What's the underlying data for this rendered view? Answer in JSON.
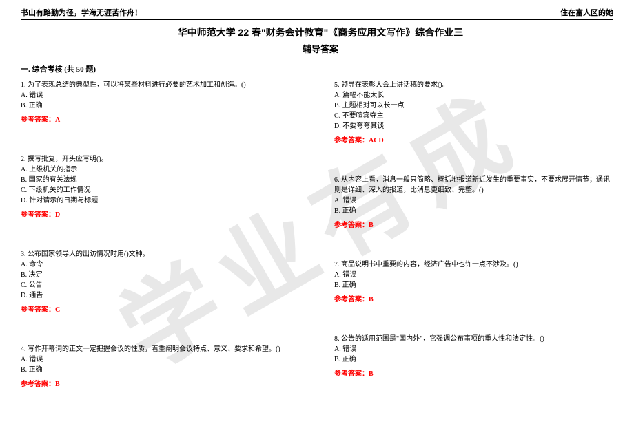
{
  "header": {
    "left": "书山有路勤为径，学海无涯苦作舟！",
    "right": "住在富人区的她"
  },
  "title": "华中师范大学 22 春\"财务会计教育\"《商务应用文写作》综合作业三",
  "subtitle": "辅导答案",
  "section_header": "一. 综合考核 (共 50 题)",
  "watermark": "学业有成",
  "answer_label": "参考答案：",
  "colors": {
    "answer": "#ff0000",
    "text": "#000000",
    "watermark": "#e8e8e8"
  },
  "left_questions": [
    {
      "text": "1. 为了表现总结的典型性，可以将某些材料进行必要的艺术加工和创造。()",
      "options": [
        "A. 错误",
        "B. 正确"
      ],
      "answer": "A"
    },
    {
      "text": "2. 撰写批复，开头应写明()。",
      "options": [
        "A. 上级机关的指示",
        "B. 国家的有关法规",
        "C. 下级机关的工作情况",
        "D. 针对请示的日期与标题"
      ],
      "answer": "D"
    },
    {
      "text": "3. 公布国家领导人的出访情况时用()文种。",
      "options": [
        "A. 命令",
        "B. 决定",
        "C. 公告",
        "D. 通告"
      ],
      "answer": "C"
    },
    {
      "text": "4. 写作开幕词的正文一定把握会议的性质，着重阐明会议特点、意义、要求和希望。()",
      "options": [
        "A. 错误",
        "B. 正确"
      ],
      "answer": "B"
    }
  ],
  "right_questions": [
    {
      "text": "5. 领导在表彰大会上讲话稿的要求()。",
      "options": [
        "A. 篇幅不能太长",
        "B. 主题相对可以长一点",
        "C. 不要喧宾夺主",
        "D. 不要夸夸其谈"
      ],
      "answer": "ACD"
    },
    {
      "text": "6. 从内容上看，消息一般只简略、概括地报道新近发生的重要事实，不要求展开情节；通讯则是详细、深入的报道，比消息更细致、完整。()",
      "options": [
        "A. 错误",
        "B. 正确"
      ],
      "answer": "B"
    },
    {
      "text": "7. 商品说明书中重要的内容，经济广告中也许一点不涉及。()",
      "options": [
        "A. 错误",
        "B. 正确"
      ],
      "answer": "B"
    },
    {
      "text": "8. 公告的适用范围是\"国内外\"，它强调公布事项的重大性和法定性。()",
      "options": [
        "A. 错误",
        "B. 正确"
      ],
      "answer": "B"
    }
  ]
}
